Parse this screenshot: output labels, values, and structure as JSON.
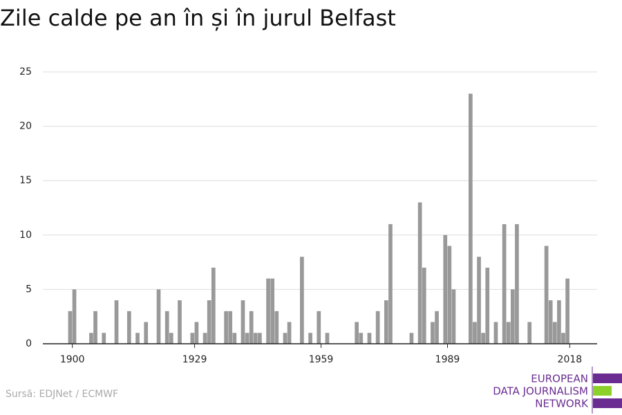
{
  "chart_data": {
    "type": "bar",
    "title": "Zile calde pe an în și în jurul Belfast",
    "source": "Sursă: EDJNet / ECMWF",
    "logo": [
      "EUROPEAN",
      "DATA JOURNALISM",
      "NETWORK"
    ],
    "color": "#999999",
    "x": [
      1899,
      1900,
      1904,
      1905,
      1907,
      1910,
      1913,
      1915,
      1917,
      1920,
      1922,
      1923,
      1925,
      1928,
      1929,
      1931,
      1932,
      1933,
      1936,
      1937,
      1938,
      1940,
      1941,
      1942,
      1943,
      1944,
      1946,
      1947,
      1948,
      1950,
      1951,
      1954,
      1956,
      1958,
      1960,
      1967,
      1968,
      1970,
      1972,
      1974,
      1975,
      1980,
      1982,
      1983,
      1985,
      1986,
      1988,
      1989,
      1990,
      1994,
      1995,
      1996,
      1997,
      1998,
      2000,
      2002,
      2003,
      2004,
      2005,
      2008,
      2012,
      2013,
      2014,
      2015,
      2016,
      2017
    ],
    "values": [
      3,
      5,
      1,
      3,
      1,
      4,
      3,
      1,
      2,
      5,
      3,
      1,
      4,
      1,
      2,
      1,
      4,
      7,
      3,
      3,
      1,
      4,
      1,
      3,
      1,
      1,
      6,
      6,
      3,
      1,
      2,
      8,
      1,
      3,
      1,
      2,
      1,
      1,
      3,
      4,
      11,
      1,
      13,
      7,
      2,
      3,
      10,
      9,
      5,
      23,
      2,
      8,
      1,
      7,
      2,
      11,
      2,
      5,
      11,
      2,
      9,
      4,
      2,
      4,
      1,
      6
    ],
    "xlim": [
      1893,
      2024.5
    ],
    "xticks": [
      1900,
      1929,
      1959,
      1989,
      2018
    ],
    "ylim": [
      0,
      25
    ],
    "yticks": [
      0,
      5,
      10,
      15,
      20,
      25
    ],
    "grid": true
  }
}
